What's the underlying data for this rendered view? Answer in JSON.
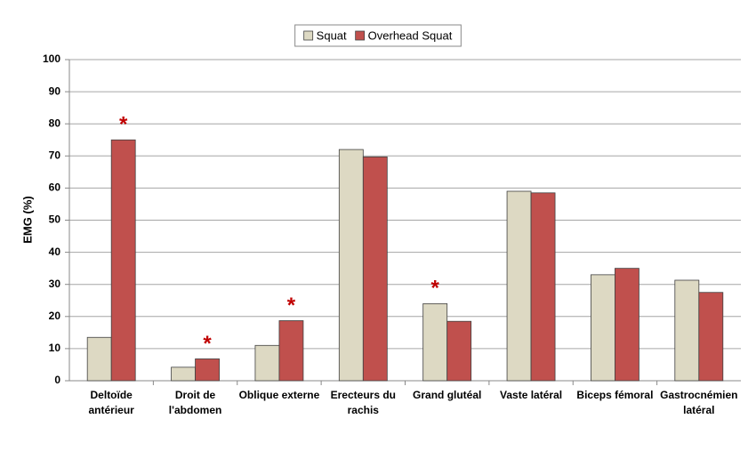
{
  "chart_data": {
    "type": "bar",
    "ylabel": "EMG (%)",
    "categories": [
      [
        "Deltoïde",
        "antérieur"
      ],
      [
        "Droit de",
        "l'abdomen"
      ],
      [
        "Oblique externe"
      ],
      [
        "Erecteurs du",
        "rachis"
      ],
      [
        "Grand glutéal"
      ],
      [
        "Vaste latéral"
      ],
      [
        "Biceps fémoral"
      ],
      [
        "Gastrocnémien",
        "latéral"
      ]
    ],
    "series": [
      {
        "name": "Squat",
        "color": "#ddd9c3",
        "values": [
          13.5,
          4.2,
          11,
          72,
          24,
          59,
          33,
          31.3
        ]
      },
      {
        "name": "Overhead Squat",
        "color": "#c0504d",
        "values": [
          75,
          6.8,
          18.7,
          69.7,
          18.5,
          58.5,
          35,
          27.5
        ]
      }
    ],
    "annotations": [
      {
        "text": "*",
        "category": 0
      },
      {
        "text": "*",
        "category": 1
      },
      {
        "text": "*",
        "category": 2
      },
      {
        "text": "*",
        "category": 4
      }
    ],
    "ylim": [
      0,
      100
    ],
    "yticks": [
      0,
      10,
      20,
      30,
      40,
      50,
      60,
      70,
      80,
      90,
      100
    ],
    "grid": true,
    "legend": "top"
  }
}
